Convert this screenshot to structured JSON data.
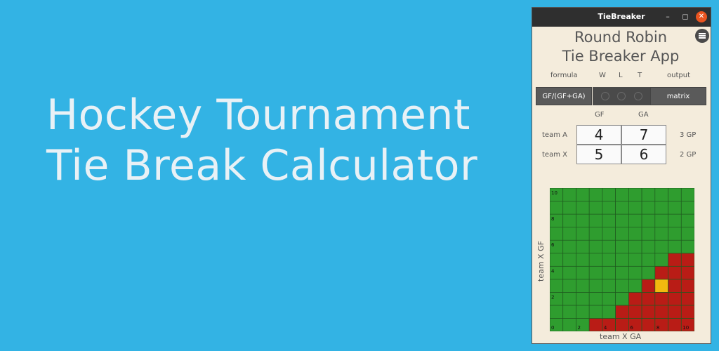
{
  "hero": {
    "line1": "Hockey Tournament",
    "line2": "Tie Break Calculator"
  },
  "window": {
    "title": "TieBreaker",
    "controls": {
      "minimize": "–",
      "maximize": "◻",
      "close": "✕"
    }
  },
  "app": {
    "title_line1": "Round Robin",
    "title_line2": "Tie Breaker App",
    "menu_icon": "hamburger-menu-icon"
  },
  "headers": {
    "formula": "formula",
    "w": "W",
    "l": "L",
    "t": "T",
    "output": "output"
  },
  "buttons": {
    "formula": "GF/(GF+GA)",
    "output": "matrix"
  },
  "columns": {
    "gf": "GF",
    "ga": "GA"
  },
  "teams": [
    {
      "name": "team A",
      "gf": "4",
      "ga": "7",
      "gp": "3 GP"
    },
    {
      "name": "team X",
      "gf": "5",
      "ga": "6",
      "gp": "2 GP"
    }
  ],
  "matrix": {
    "xlabel": "team X GA",
    "ylabel": "team X GF",
    "x_ticks": [
      "0",
      "2",
      "4",
      "6",
      "8",
      "10"
    ],
    "y_ticks": [
      "0",
      "2",
      "4",
      "6",
      "8",
      "10"
    ],
    "colors": {
      "green": "#2f9d2f",
      "red": "#b91c16",
      "yellow": "#f2b90f",
      "line": "#1f5a1f"
    },
    "red_threshold_by_row": [
      3,
      5,
      6,
      7,
      8,
      9,
      11,
      11,
      11,
      11,
      11
    ],
    "yellow_cell": {
      "ga": 8,
      "gf": 3
    }
  }
}
